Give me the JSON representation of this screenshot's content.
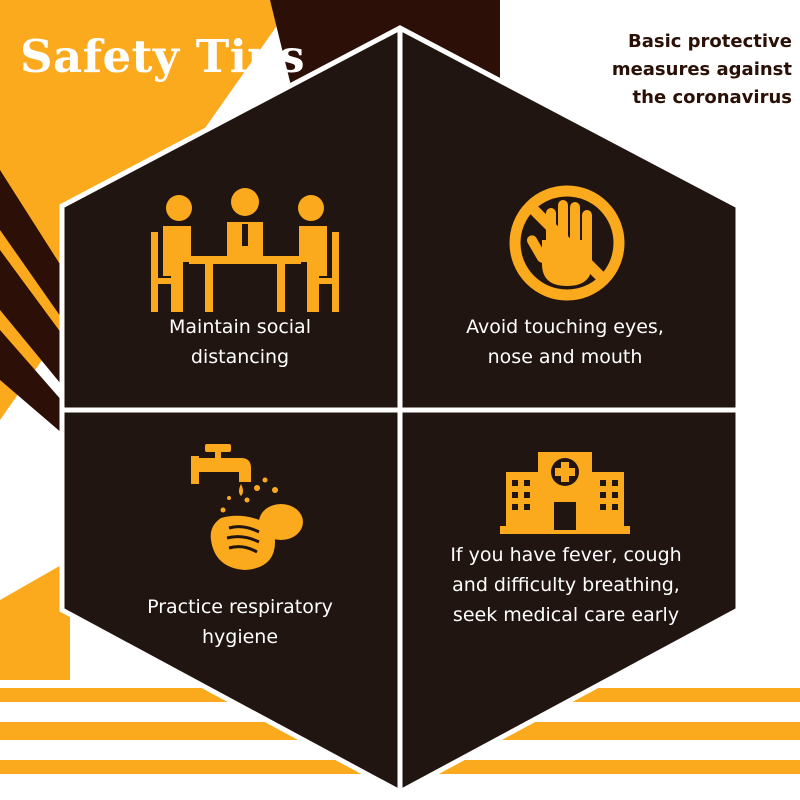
{
  "colors": {
    "orange": "#fcaa1d",
    "dark_brown": "#2c0f07",
    "panel": "#211511",
    "border": "#ffffff",
    "text": "#ffffff"
  },
  "header": {
    "title": "Safety Tips",
    "subtitle": "Basic protective\nmeasures against\nthe coronavirus"
  },
  "tips": [
    {
      "icon": "meeting-people-icon",
      "label": "Maintain social\ndistancing"
    },
    {
      "icon": "no-touch-hand-icon",
      "label": "Avoid touching eyes,\nnose and mouth"
    },
    {
      "icon": "handwashing-tap-icon",
      "label": "Practice respiratory\nhygiene"
    },
    {
      "icon": "hospital-building-icon",
      "label": "If you have fever, cough\nand difficulty breathing,\nseek medical care early"
    }
  ]
}
